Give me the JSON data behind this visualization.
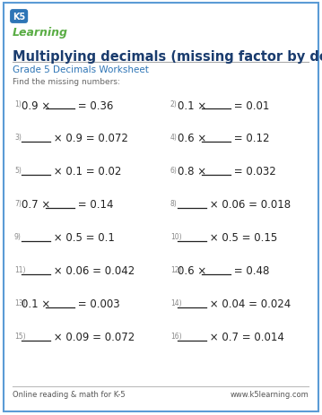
{
  "title": "Multiplying decimals (missing factor by decimals)",
  "subtitle": "Grade 5 Decimals Worksheet",
  "instruction": "Find the missing numbers:",
  "border_color": "#5b9bd5",
  "title_color": "#1a3c6e",
  "subtitle_color": "#2e75b6",
  "instruction_color": "#666666",
  "text_color": "#222222",
  "num_color": "#888888",
  "footer_left": "Online reading & math for K-5",
  "footer_right": "www.k5learning.com",
  "footer_color": "#555555",
  "bg_color": "#ffffff",
  "problems_left": [
    {
      "num": "1)",
      "pre": "0.9 × ",
      "blank": true,
      "post": " = 0.36"
    },
    {
      "num": "3)",
      "pre": "",
      "blank": true,
      "post": " × 0.9 = 0.072"
    },
    {
      "num": "5)",
      "pre": "",
      "blank": true,
      "post": " × 0.1 = 0.02"
    },
    {
      "num": "7)",
      "pre": "0.7 × ",
      "blank": true,
      "post": " = 0.14"
    },
    {
      "num": "9)",
      "pre": "",
      "blank": true,
      "post": " × 0.5 = 0.1"
    },
    {
      "num": "11)",
      "pre": "",
      "blank": true,
      "post": " × 0.06 = 0.042"
    },
    {
      "num": "13)",
      "pre": "0.1 × ",
      "blank": true,
      "post": " = 0.003"
    },
    {
      "num": "15)",
      "pre": "",
      "blank": true,
      "post": " × 0.09 = 0.072"
    }
  ],
  "problems_right": [
    {
      "num": "2)",
      "pre": "0.1 × ",
      "blank": true,
      "post": " = 0.01"
    },
    {
      "num": "4)",
      "pre": "0.6 × ",
      "blank": true,
      "post": " = 0.12"
    },
    {
      "num": "6)",
      "pre": "0.8 × ",
      "blank": true,
      "post": " = 0.032"
    },
    {
      "num": "8)",
      "pre": "",
      "blank": true,
      "post": " × 0.06 = 0.018"
    },
    {
      "num": "10)",
      "pre": "",
      "blank": true,
      "post": " × 0.5 = 0.15"
    },
    {
      "num": "12)",
      "pre": "0.6 × ",
      "blank": true,
      "post": " = 0.48"
    },
    {
      "num": "14)",
      "pre": "",
      "blank": true,
      "post": " × 0.04 = 0.024"
    },
    {
      "num": "16)",
      "pre": "",
      "blank": true,
      "post": " × 0.7 = 0.014"
    }
  ]
}
